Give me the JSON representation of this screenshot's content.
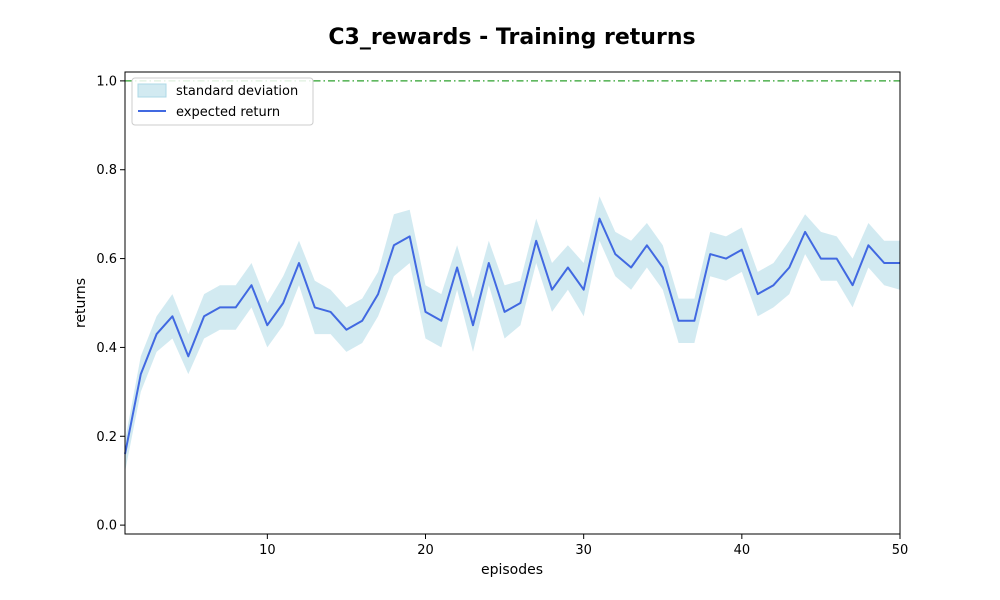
{
  "chart_data": {
    "type": "line",
    "title": "C3_rewards - Training returns",
    "xlabel": "episodes",
    "ylabel": "returns",
    "xlim": [
      1,
      50
    ],
    "ylim": [
      -0.02,
      1.02
    ],
    "x_ticks": [
      10,
      20,
      30,
      40,
      50
    ],
    "x_tick_labels": [
      "10",
      "20",
      "30",
      "40",
      "50"
    ],
    "y_ticks": [
      0.0,
      0.2,
      0.4,
      0.6,
      0.8,
      1.0
    ],
    "y_tick_labels": [
      "0.0",
      "0.2",
      "0.4",
      "0.6",
      "0.8",
      "1.0"
    ],
    "grid": false,
    "legend_position": "top-left",
    "reference_line": {
      "y": 1.0,
      "color": "#2ca02c",
      "style": "dash-dot"
    },
    "x": [
      1,
      2,
      3,
      4,
      5,
      6,
      7,
      8,
      9,
      10,
      11,
      12,
      13,
      14,
      15,
      16,
      17,
      18,
      19,
      20,
      21,
      22,
      23,
      24,
      25,
      26,
      27,
      28,
      29,
      30,
      31,
      32,
      33,
      34,
      35,
      36,
      37,
      38,
      39,
      40,
      41,
      42,
      43,
      44,
      45,
      46,
      47,
      48,
      49,
      50
    ],
    "series": [
      {
        "name": "expected return",
        "color": "#4169e1",
        "values": [
          0.16,
          0.34,
          0.43,
          0.47,
          0.38,
          0.47,
          0.49,
          0.49,
          0.54,
          0.45,
          0.5,
          0.59,
          0.49,
          0.48,
          0.44,
          0.46,
          0.52,
          0.63,
          0.65,
          0.48,
          0.46,
          0.58,
          0.45,
          0.59,
          0.48,
          0.5,
          0.64,
          0.53,
          0.58,
          0.53,
          0.69,
          0.61,
          0.58,
          0.63,
          0.58,
          0.46,
          0.46,
          0.61,
          0.6,
          0.62,
          0.52,
          0.54,
          0.58,
          0.66,
          0.6,
          0.6,
          0.54,
          0.63,
          0.59,
          0.59
        ]
      }
    ],
    "band": {
      "name": "standard deviation",
      "color": "#add8e6",
      "upper": [
        0.19,
        0.38,
        0.47,
        0.52,
        0.43,
        0.52,
        0.54,
        0.54,
        0.59,
        0.5,
        0.56,
        0.64,
        0.55,
        0.53,
        0.49,
        0.51,
        0.57,
        0.7,
        0.71,
        0.54,
        0.52,
        0.63,
        0.51,
        0.64,
        0.54,
        0.55,
        0.69,
        0.59,
        0.63,
        0.59,
        0.74,
        0.66,
        0.64,
        0.68,
        0.63,
        0.51,
        0.51,
        0.66,
        0.65,
        0.67,
        0.57,
        0.59,
        0.64,
        0.7,
        0.66,
        0.65,
        0.6,
        0.68,
        0.64,
        0.64
      ],
      "lower": [
        0.12,
        0.3,
        0.39,
        0.42,
        0.34,
        0.42,
        0.44,
        0.44,
        0.49,
        0.4,
        0.45,
        0.54,
        0.43,
        0.43,
        0.39,
        0.41,
        0.47,
        0.56,
        0.59,
        0.42,
        0.4,
        0.53,
        0.39,
        0.54,
        0.42,
        0.45,
        0.59,
        0.48,
        0.53,
        0.47,
        0.64,
        0.56,
        0.53,
        0.58,
        0.53,
        0.41,
        0.41,
        0.56,
        0.55,
        0.57,
        0.47,
        0.49,
        0.52,
        0.61,
        0.55,
        0.55,
        0.49,
        0.58,
        0.54,
        0.53
      ]
    },
    "legend": {
      "band_label": "standard deviation",
      "line_label": "expected return"
    }
  }
}
